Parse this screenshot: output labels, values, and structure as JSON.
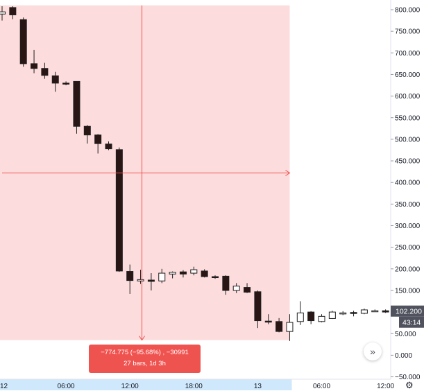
{
  "chart_data": {
    "type": "candlestick",
    "y_ticks": [
      800,
      750,
      700,
      650,
      600,
      550,
      500,
      450,
      400,
      350,
      300,
      250,
      200,
      150,
      100,
      50,
      0,
      -50
    ],
    "y_tick_labels": [
      "800.000",
      "750.000",
      "700.000",
      "650.000",
      "600.000",
      "550.000",
      "500.000",
      "450.000",
      "400.000",
      "350.000",
      "300.000",
      "250.000",
      "200.000",
      "150.000",
      "100.000",
      "50.000",
      "0.000",
      "−50.000"
    ],
    "ylim": [
      -50,
      812
    ],
    "time_labels": [
      {
        "bar": 0,
        "label": "12"
      },
      {
        "bar": 6,
        "label": "06:00"
      },
      {
        "bar": 12,
        "label": "12:00"
      },
      {
        "bar": 18,
        "label": "18:00"
      },
      {
        "bar": 24,
        "label": "13"
      },
      {
        "bar": 30,
        "label": "06:00"
      },
      {
        "bar": 36,
        "label": "12:00"
      }
    ],
    "candles": [
      {
        "o": 790,
        "h": 808,
        "l": 775,
        "c": 795
      },
      {
        "o": 805,
        "h": 808,
        "l": 778,
        "c": 788
      },
      {
        "o": 777,
        "h": 782,
        "l": 668,
        "c": 675
      },
      {
        "o": 675,
        "h": 707,
        "l": 653,
        "c": 664
      },
      {
        "o": 664,
        "h": 677,
        "l": 640,
        "c": 648
      },
      {
        "o": 647,
        "h": 656,
        "l": 610,
        "c": 630
      },
      {
        "o": 630,
        "h": 634,
        "l": 625,
        "c": 628
      },
      {
        "o": 634,
        "h": 634,
        "l": 513,
        "c": 530
      },
      {
        "o": 530,
        "h": 533,
        "l": 490,
        "c": 510
      },
      {
        "o": 510,
        "h": 512,
        "l": 467,
        "c": 490
      },
      {
        "o": 489,
        "h": 495,
        "l": 475,
        "c": 478
      },
      {
        "o": 476,
        "h": 481,
        "l": 193,
        "c": 195
      },
      {
        "o": 194,
        "h": 210,
        "l": 142,
        "c": 173
      },
      {
        "o": 172,
        "h": 198,
        "l": 165,
        "c": 175
      },
      {
        "o": 174,
        "h": 190,
        "l": 150,
        "c": 171
      },
      {
        "o": 172,
        "h": 200,
        "l": 167,
        "c": 190
      },
      {
        "o": 188,
        "h": 194,
        "l": 178,
        "c": 192
      },
      {
        "o": 193,
        "h": 197,
        "l": 180,
        "c": 188
      },
      {
        "o": 190,
        "h": 205,
        "l": 185,
        "c": 198
      },
      {
        "o": 195,
        "h": 199,
        "l": 180,
        "c": 182
      },
      {
        "o": 182,
        "h": 185,
        "l": 177,
        "c": 180
      },
      {
        "o": 183,
        "h": 185,
        "l": 140,
        "c": 150
      },
      {
        "o": 150,
        "h": 167,
        "l": 144,
        "c": 160
      },
      {
        "o": 157,
        "h": 167,
        "l": 144,
        "c": 146
      },
      {
        "o": 147,
        "h": 150,
        "l": 63,
        "c": 80
      },
      {
        "o": 79,
        "h": 95,
        "l": 72,
        "c": 77
      },
      {
        "o": 78,
        "h": 86,
        "l": 53,
        "c": 55
      },
      {
        "o": 55,
        "h": 95,
        "l": 33,
        "c": 76
      },
      {
        "o": 78,
        "h": 125,
        "l": 70,
        "c": 98
      },
      {
        "o": 100,
        "h": 102,
        "l": 72,
        "c": 80
      },
      {
        "o": 78,
        "h": 95,
        "l": 76,
        "c": 90
      },
      {
        "o": 85,
        "h": 103,
        "l": 84,
        "c": 100
      },
      {
        "o": 97,
        "h": 102,
        "l": 93,
        "c": 98
      },
      {
        "o": 99,
        "h": 103,
        "l": 90,
        "c": 97
      },
      {
        "o": 97,
        "h": 108,
        "l": 95,
        "c": 105
      },
      {
        "o": 103,
        "h": 106,
        "l": 101,
        "c": 103
      },
      {
        "o": 103,
        "h": 106,
        "l": 98,
        "c": 100
      }
    ],
    "measure_range": {
      "from_bar": 0,
      "to_bar": 27,
      "high": 810,
      "low": 35
    },
    "crosshair": {
      "bar": 13,
      "price": 422
    },
    "last_price_label": "102.200",
    "countdown_label": "43:14",
    "measure_line1": "−774.775 (−95.68%) , −30991",
    "measure_line2": "27 bars, 1d 3h",
    "colors": {
      "up_body": "#ffffff",
      "down_body": "#2a1515",
      "candle_border": "#1e1e1e",
      "measure_fill": "#fcdcdc",
      "measure_line": "#ef5350",
      "axis_highlight": "#cfe8fb",
      "price_label_bg": "#50535e"
    }
  },
  "controls": {
    "scroll_icon": "double-chevron-right",
    "settings_icon": "gear"
  }
}
